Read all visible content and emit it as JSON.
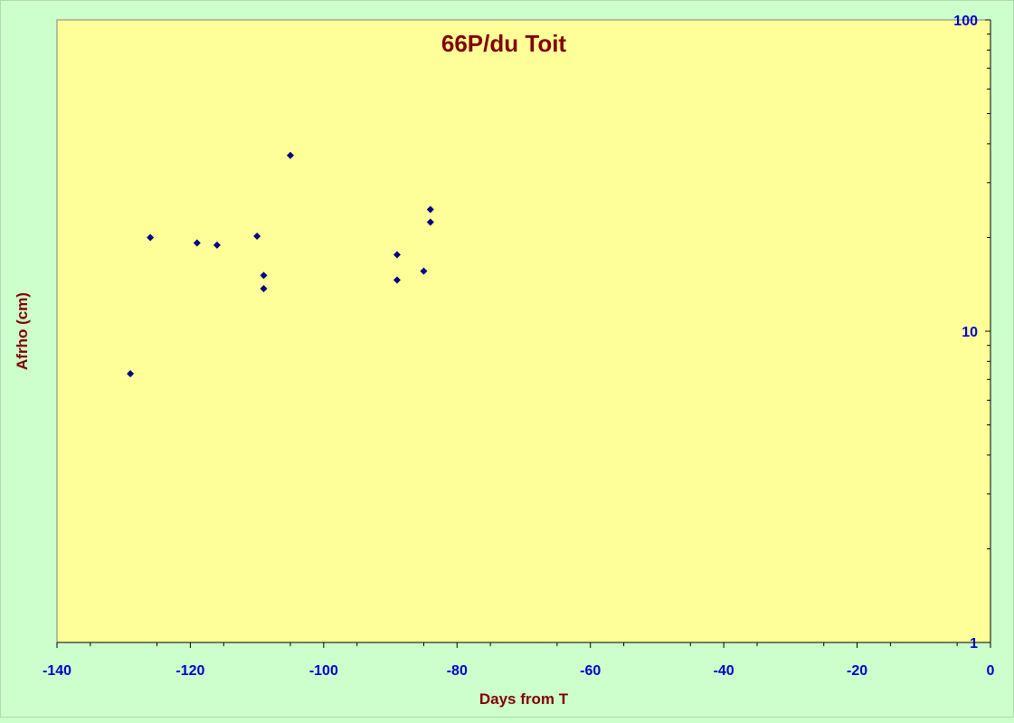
{
  "chart_data": {
    "type": "scatter",
    "title": "66P/du Toit",
    "xlabel": "Days from T",
    "ylabel": "Afrho (cm)",
    "xlim": [
      -140,
      0
    ],
    "ylim": [
      1,
      100
    ],
    "yscale": "log",
    "x_ticks": [
      -140,
      -120,
      -100,
      -80,
      -60,
      -40,
      -20,
      0
    ],
    "x_tick_labels": [
      "-140",
      "-120",
      "-100",
      "-80",
      "-60",
      "-40",
      "-20",
      "0"
    ],
    "y_ticks": [
      1,
      10,
      100
    ],
    "y_tick_labels": [
      "1",
      "10",
      "100"
    ],
    "y_axis_side": "right",
    "grid": false,
    "legend": "none",
    "colors": {
      "background": "#ccffcc",
      "plot_area": "#ffff99",
      "marker": "#000080",
      "title": "#800000",
      "axis_labels": "#800000",
      "tick_labels": "#0000cc"
    },
    "series": [
      {
        "marker": "diamond",
        "points": [
          {
            "x": -129,
            "y": 7.3
          },
          {
            "x": -126,
            "y": 20.0
          },
          {
            "x": -119,
            "y": 19.2
          },
          {
            "x": -116,
            "y": 18.9
          },
          {
            "x": -110,
            "y": 20.2
          },
          {
            "x": -109,
            "y": 15.1
          },
          {
            "x": -109,
            "y": 13.7
          },
          {
            "x": -105,
            "y": 36.7
          },
          {
            "x": -89,
            "y": 17.6
          },
          {
            "x": -89,
            "y": 14.6
          },
          {
            "x": -85,
            "y": 15.6
          },
          {
            "x": -84,
            "y": 24.6
          },
          {
            "x": -84,
            "y": 22.4
          }
        ]
      }
    ]
  }
}
